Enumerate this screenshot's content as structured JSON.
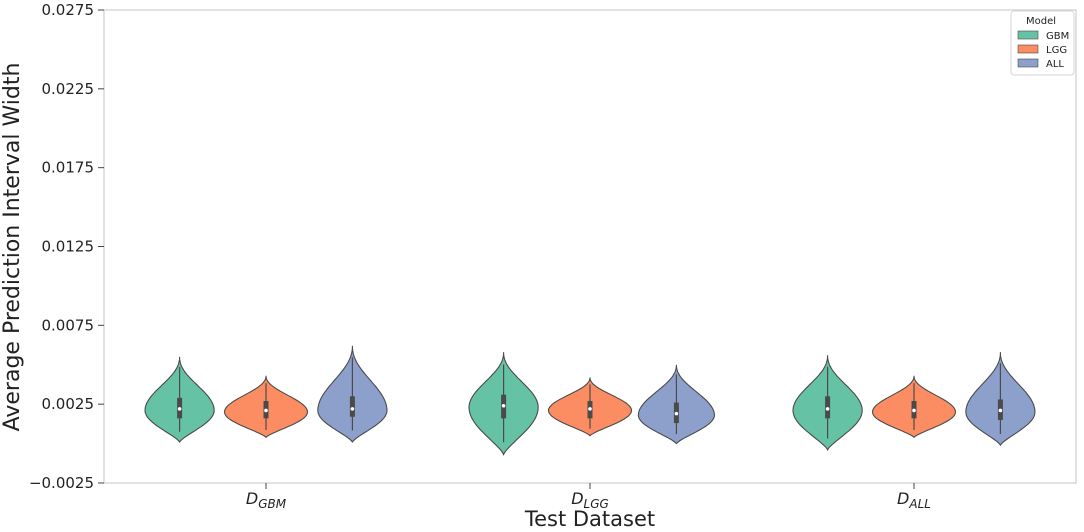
{
  "chart_data": {
    "type": "violin",
    "xlabel": "Test Dataset",
    "ylabel": "Average Prediction Interval Width",
    "ylim": [
      -0.0025,
      0.0275
    ],
    "yticks": [
      -0.0025,
      0.0025,
      0.0075,
      0.0125,
      0.0175,
      0.0225,
      0.0275
    ],
    "ytick_labels": [
      "−0.0025",
      "0.0025",
      "0.0075",
      "0.0125",
      "0.0175",
      "0.0225",
      "0.0275"
    ],
    "categories": [
      {
        "base": "D",
        "sub": "GBM"
      },
      {
        "base": "D",
        "sub": "LGG"
      },
      {
        "base": "D",
        "sub": "ALL"
      }
    ],
    "grid": false,
    "legend": {
      "title": "Model",
      "placement": "top-right",
      "entries": [
        "GBM",
        "LGG",
        "ALL"
      ]
    },
    "series": [
      {
        "name": "GBM",
        "color": "#66c2a5",
        "violins": [
          {
            "min": 0.0001,
            "max": 0.0055,
            "q1": 0.0016,
            "median": 0.0022,
            "q3": 0.0029,
            "mode": 0.0021,
            "halfwidth": 0.5
          },
          {
            "min": -0.0007,
            "max": 0.0058,
            "q1": 0.0016,
            "median": 0.0024,
            "q3": 0.0031,
            "mode": 0.0023,
            "halfwidth": 0.5
          },
          {
            "min": -0.0004,
            "max": 0.0056,
            "q1": 0.0016,
            "median": 0.0022,
            "q3": 0.003,
            "mode": 0.0021,
            "halfwidth": 0.5
          }
        ]
      },
      {
        "name": "LGG",
        "color": "#fc8d62",
        "violins": [
          {
            "min": 0.0004,
            "max": 0.0043,
            "q1": 0.0016,
            "median": 0.0021,
            "q3": 0.0027,
            "mode": 0.002,
            "halfwidth": 0.6
          },
          {
            "min": 0.0005,
            "max": 0.0042,
            "q1": 0.0016,
            "median": 0.0022,
            "q3": 0.0027,
            "mode": 0.0021,
            "halfwidth": 0.6
          },
          {
            "min": 0.0004,
            "max": 0.0043,
            "q1": 0.0016,
            "median": 0.0021,
            "q3": 0.0027,
            "mode": 0.002,
            "halfwidth": 0.6
          }
        ]
      },
      {
        "name": "ALL",
        "color": "#8da0cb",
        "violins": [
          {
            "min": 0.0001,
            "max": 0.0062,
            "q1": 0.0017,
            "median": 0.0022,
            "q3": 0.003,
            "mode": 0.0021,
            "halfwidth": 0.5
          },
          {
            "min": 0.0,
            "max": 0.005,
            "q1": 0.0013,
            "median": 0.0019,
            "q3": 0.0026,
            "mode": 0.0018,
            "halfwidth": 0.55
          },
          {
            "min": -0.0001,
            "max": 0.0058,
            "q1": 0.0015,
            "median": 0.0021,
            "q3": 0.0028,
            "mode": 0.002,
            "halfwidth": 0.5
          }
        ]
      }
    ]
  }
}
